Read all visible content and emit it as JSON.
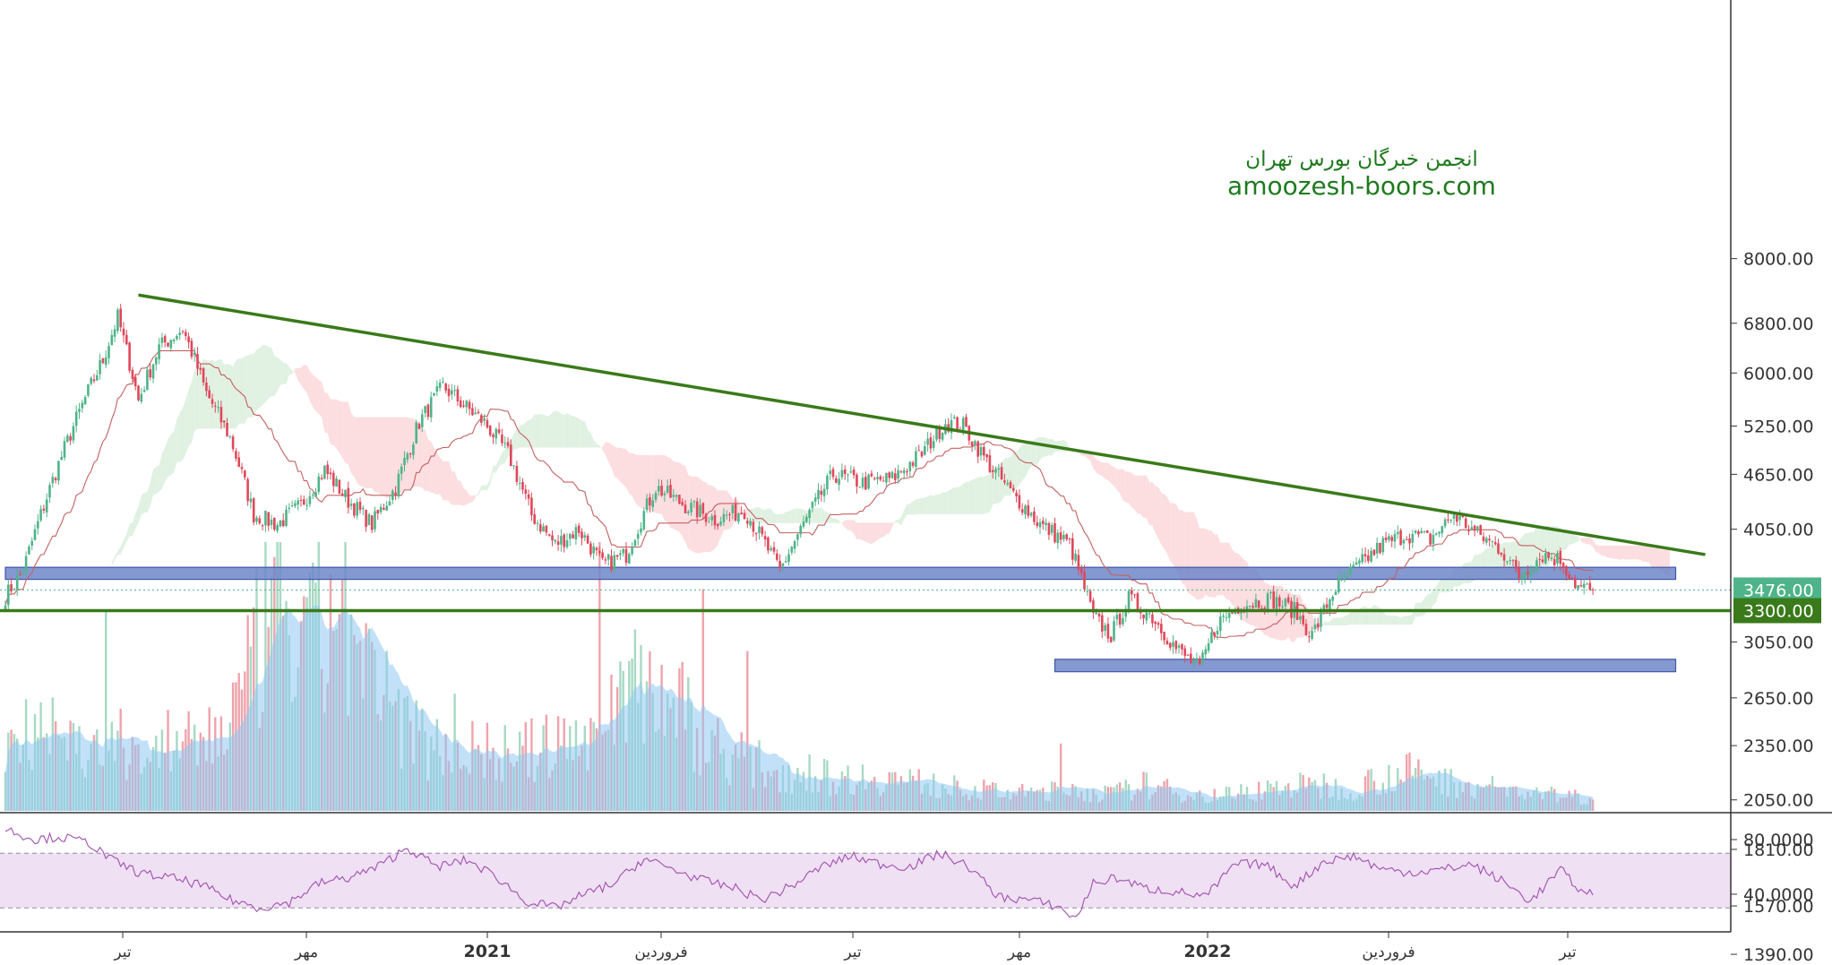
{
  "watermark": {
    "line1": "انجمن خبرگان بورس تهران",
    "line2": "amoozesh-boors.com"
  },
  "colors": {
    "up": "#4fb489",
    "down": "#e0485a",
    "trendline": "#3a7a1a",
    "support_zone": "#6f86c9",
    "ichimoku_bull": "#d6ecd8",
    "ichimoku_bear": "#fbd2d6",
    "volume_ma": "#8fc9f2",
    "rsi": "#a04fb0",
    "rsi_band": "#efe0f3",
    "last_price_tag": "#4fb489",
    "level_tag": "#3a7a1a"
  },
  "chart_data": [
    {
      "type": "candlestick",
      "name": "price",
      "price_scale": "log",
      "y_ticks": [
        2650,
        3050,
        4050,
        4650,
        5250,
        6000,
        6800,
        8000,
        1390,
        1570,
        1810,
        2050,
        2350
      ],
      "y_tick_labels": [
        "2650.00",
        "3050.00",
        "4050.00",
        "4650.00",
        "5250.00",
        "6000.00",
        "6800.00",
        "8000.00",
        "1390.00",
        "1570.00",
        "1810.00",
        "2050.00",
        "2350.00"
      ],
      "x_labels": [
        "تیر",
        "مهر",
        "2021",
        "فروردین",
        "تیر",
        "مهر",
        "2022",
        "فروردین",
        "تیر"
      ],
      "bold_x_labels": [
        "2021",
        "2022"
      ],
      "price_anchors": [
        [
          0,
          3420
        ],
        [
          6,
          3650
        ],
        [
          12,
          4200
        ],
        [
          22,
          5150
        ],
        [
          33,
          6200
        ],
        [
          38,
          6900
        ],
        [
          45,
          5600
        ],
        [
          52,
          6400
        ],
        [
          60,
          6700
        ],
        [
          68,
          5700
        ],
        [
          76,
          5100
        ],
        [
          84,
          4200
        ],
        [
          92,
          4100
        ],
        [
          100,
          4300
        ],
        [
          108,
          4700
        ],
        [
          116,
          4350
        ],
        [
          124,
          4100
        ],
        [
          132,
          4500
        ],
        [
          140,
          5300
        ],
        [
          148,
          5800
        ],
        [
          156,
          5500
        ],
        [
          162,
          5300
        ],
        [
          170,
          4900
        ],
        [
          178,
          4200
        ],
        [
          186,
          3900
        ],
        [
          194,
          4050
        ],
        [
          202,
          3700
        ],
        [
          210,
          3800
        ],
        [
          220,
          4500
        ],
        [
          230,
          4300
        ],
        [
          240,
          4150
        ],
        [
          250,
          4250
        ],
        [
          262,
          3650
        ],
        [
          270,
          4100
        ],
        [
          280,
          4650
        ],
        [
          290,
          4550
        ],
        [
          300,
          4600
        ],
        [
          310,
          4900
        ],
        [
          318,
          5300
        ],
        [
          324,
          5250
        ],
        [
          332,
          4800
        ],
        [
          340,
          4450
        ],
        [
          350,
          4100
        ],
        [
          360,
          3900
        ],
        [
          368,
          3250
        ],
        [
          374,
          3100
        ],
        [
          380,
          3400
        ],
        [
          388,
          3250
        ],
        [
          396,
          3000
        ],
        [
          404,
          2850
        ],
        [
          410,
          3200
        ],
        [
          418,
          3350
        ],
        [
          428,
          3400
        ],
        [
          436,
          3300
        ],
        [
          442,
          3100
        ],
        [
          450,
          3500
        ],
        [
          458,
          3700
        ],
        [
          466,
          3900
        ],
        [
          474,
          4000
        ],
        [
          482,
          3950
        ],
        [
          490,
          4200
        ],
        [
          498,
          4000
        ],
        [
          506,
          3850
        ],
        [
          512,
          3600
        ],
        [
          520,
          3800
        ],
        [
          526,
          3750
        ],
        [
          532,
          3500
        ],
        [
          537,
          3476
        ]
      ],
      "last_price": 3476,
      "last_price_label": "3476.00",
      "support_level": 3300,
      "support_level_label": "3300.00",
      "trendline": {
        "from": [
          45,
          7300
        ],
        "to": [
          575,
          3800
        ]
      },
      "support_zones": [
        {
          "x_start": 0,
          "x_end": 565,
          "y_low": 3570,
          "y_high": 3680
        },
        {
          "x_start": 355,
          "x_end": 565,
          "y_low": 2830,
          "y_high": 2920
        }
      ],
      "ichimoku_cloud": {
        "displacement": 26,
        "period_fast": 26,
        "period_slow": 52
      },
      "base_line_period": 26
    },
    {
      "type": "bar",
      "name": "volume",
      "levels": [
        0.3,
        0.45,
        0.32,
        0.28,
        0.31,
        0.26,
        0.29,
        0.35,
        0.55,
        1.0,
        0.7,
        0.95,
        0.6,
        0.45,
        0.32,
        0.3,
        0.28,
        0.26,
        0.29,
        0.32,
        0.45,
        0.65,
        0.55,
        0.4,
        0.28,
        0.22,
        0.18,
        0.16,
        0.15,
        0.16,
        0.14,
        0.12,
        0.1,
        0.09,
        0.08,
        0.1,
        0.09,
        0.08,
        0.12,
        0.09,
        0.07,
        0.08,
        0.1,
        0.12,
        0.1,
        0.11,
        0.16,
        0.18,
        0.14,
        0.12,
        0.1,
        0.08,
        0.07,
        0.06
      ],
      "has_moving_average": true
    },
    {
      "type": "line",
      "name": "RSI",
      "y_ticks": [
        40,
        80
      ],
      "y_tick_labels": [
        "40.0000",
        "80.0000"
      ],
      "band": [
        30,
        70
      ],
      "anchors": [
        [
          0,
          88
        ],
        [
          10,
          80
        ],
        [
          18,
          82
        ],
        [
          28,
          78
        ],
        [
          36,
          65
        ],
        [
          46,
          55
        ],
        [
          56,
          52
        ],
        [
          66,
          47
        ],
        [
          76,
          36
        ],
        [
          86,
          30
        ],
        [
          96,
          34
        ],
        [
          106,
          48
        ],
        [
          116,
          52
        ],
        [
          126,
          60
        ],
        [
          136,
          74
        ],
        [
          146,
          60
        ],
        [
          156,
          65
        ],
        [
          166,
          53
        ],
        [
          176,
          35
        ],
        [
          186,
          30
        ],
        [
          196,
          40
        ],
        [
          206,
          48
        ],
        [
          216,
          66
        ],
        [
          226,
          58
        ],
        [
          236,
          50
        ],
        [
          246,
          45
        ],
        [
          256,
          36
        ],
        [
          266,
          46
        ],
        [
          276,
          60
        ],
        [
          286,
          68
        ],
        [
          296,
          62
        ],
        [
          306,
          60
        ],
        [
          316,
          70
        ],
        [
          326,
          60
        ],
        [
          336,
          38
        ],
        [
          346,
          36
        ],
        [
          356,
          31
        ],
        [
          362,
          22
        ],
        [
          368,
          48
        ],
        [
          376,
          52
        ],
        [
          386,
          44
        ],
        [
          396,
          42
        ],
        [
          406,
          38
        ],
        [
          416,
          62
        ],
        [
          426,
          62
        ],
        [
          436,
          46
        ],
        [
          446,
          64
        ],
        [
          456,
          68
        ],
        [
          466,
          58
        ],
        [
          476,
          56
        ],
        [
          486,
          58
        ],
        [
          496,
          62
        ],
        [
          506,
          50
        ],
        [
          516,
          35
        ],
        [
          526,
          58
        ],
        [
          534,
          40
        ],
        [
          537,
          42
        ]
      ]
    }
  ]
}
